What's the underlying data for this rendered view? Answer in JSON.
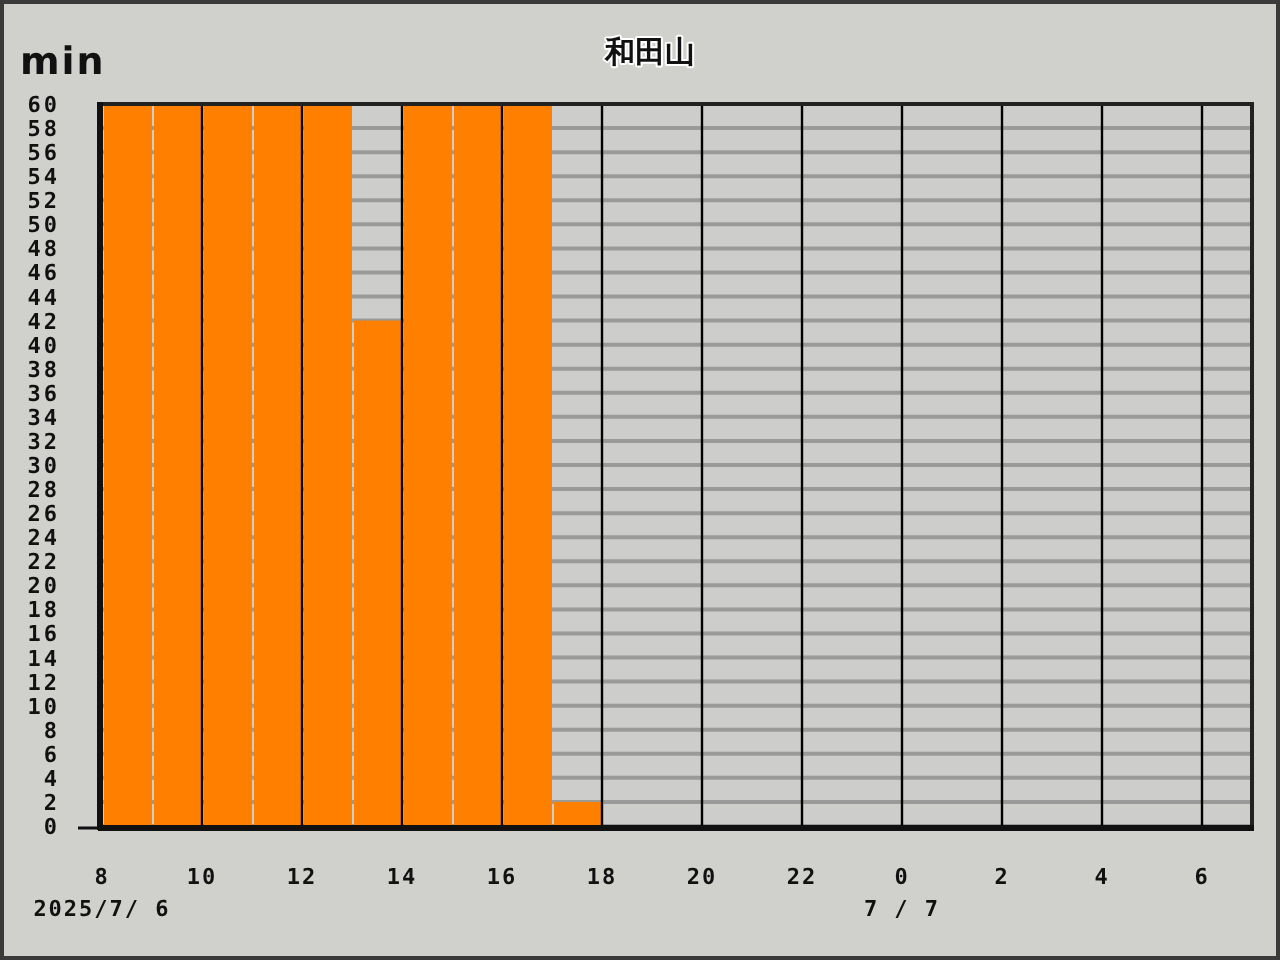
{
  "chart_data": {
    "type": "bar",
    "title": "和田山",
    "ylabel": "min",
    "x": [
      "2025-07-06T08:30",
      "2025-07-06T09:30",
      "2025-07-06T10:30",
      "2025-07-06T11:30",
      "2025-07-06T12:30",
      "2025-07-06T13:30",
      "2025-07-06T14:30",
      "2025-07-06T15:30",
      "2025-07-06T16:30",
      "2025-07-06T17:30"
    ],
    "values": [
      60,
      60,
      60,
      60,
      60,
      42,
      60,
      60,
      60,
      2
    ],
    "color": "#ff8000",
    "xlim": [
      "2025-07-06T08:00",
      "2025-07-07T07:00"
    ],
    "xticks": [
      {
        "value": "2025-07-06T08:00",
        "label": "8\n2025/7/ 6"
      },
      {
        "value": "2025-07-06T10:00",
        "label": "10"
      },
      {
        "value": "2025-07-06T12:00",
        "label": "12"
      },
      {
        "value": "2025-07-06T14:00",
        "label": "14"
      },
      {
        "value": "2025-07-06T16:00",
        "label": "16"
      },
      {
        "value": "2025-07-06T18:00",
        "label": "18"
      },
      {
        "value": "2025-07-06T20:00",
        "label": "20"
      },
      {
        "value": "2025-07-06T22:00",
        "label": "22"
      },
      {
        "value": "2025-07-07T00:00",
        "label": "0\n7 / 7"
      },
      {
        "value": "2025-07-07T02:00",
        "label": "2"
      },
      {
        "value": "2025-07-07T04:00",
        "label": "4"
      },
      {
        "value": "2025-07-07T06:00",
        "label": "6"
      }
    ],
    "ylim": [
      0,
      60
    ],
    "yticks": [
      0,
      2,
      4,
      6,
      8,
      10,
      12,
      14,
      16,
      18,
      20,
      22,
      24,
      26,
      28,
      30,
      32,
      34,
      36,
      38,
      40,
      42,
      44,
      46,
      48,
      50,
      52,
      54,
      56,
      58,
      60
    ],
    "grid": true
  }
}
